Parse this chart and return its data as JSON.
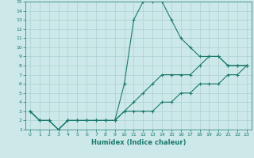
{
  "xlabel": "Humidex (Indice chaleur)",
  "ylabel": "",
  "xlim": [
    -0.5,
    23.5
  ],
  "ylim": [
    1,
    15
  ],
  "xticks": [
    0,
    1,
    2,
    3,
    4,
    5,
    6,
    7,
    8,
    9,
    10,
    11,
    12,
    13,
    14,
    15,
    16,
    17,
    18,
    19,
    20,
    21,
    22,
    23
  ],
  "yticks": [
    1,
    2,
    3,
    4,
    5,
    6,
    7,
    8,
    9,
    10,
    11,
    12,
    13,
    14,
    15
  ],
  "bg_color": "#cde8e8",
  "line_color": "#1a7a6e",
  "grid_color": "#b0d4d4",
  "lines": [
    {
      "x": [
        0,
        1,
        2,
        3,
        4,
        5,
        6,
        7,
        8,
        9,
        10,
        11,
        12,
        13,
        14,
        15,
        16,
        17,
        18,
        19,
        20,
        21,
        22,
        23
      ],
      "y": [
        3,
        2,
        2,
        1,
        2,
        2,
        2,
        2,
        2,
        2,
        6,
        13,
        15,
        15,
        15,
        13,
        11,
        10,
        9,
        9,
        9,
        8,
        8,
        8
      ]
    },
    {
      "x": [
        0,
        1,
        2,
        3,
        4,
        5,
        6,
        7,
        8,
        9,
        10,
        11,
        12,
        13,
        14,
        15,
        16,
        17,
        18,
        19,
        20,
        21,
        22,
        23
      ],
      "y": [
        3,
        2,
        2,
        1,
        2,
        2,
        2,
        2,
        2,
        2,
        3,
        4,
        5,
        6,
        7,
        7,
        7,
        7,
        8,
        9,
        9,
        8,
        8,
        8
      ]
    },
    {
      "x": [
        0,
        1,
        2,
        3,
        4,
        5,
        6,
        7,
        8,
        9,
        10,
        11,
        12,
        13,
        14,
        15,
        16,
        17,
        18,
        19,
        20,
        21,
        22,
        23
      ],
      "y": [
        3,
        2,
        2,
        1,
        2,
        2,
        2,
        2,
        2,
        2,
        3,
        3,
        3,
        3,
        4,
        4,
        5,
        5,
        6,
        6,
        6,
        7,
        7,
        8
      ]
    }
  ]
}
